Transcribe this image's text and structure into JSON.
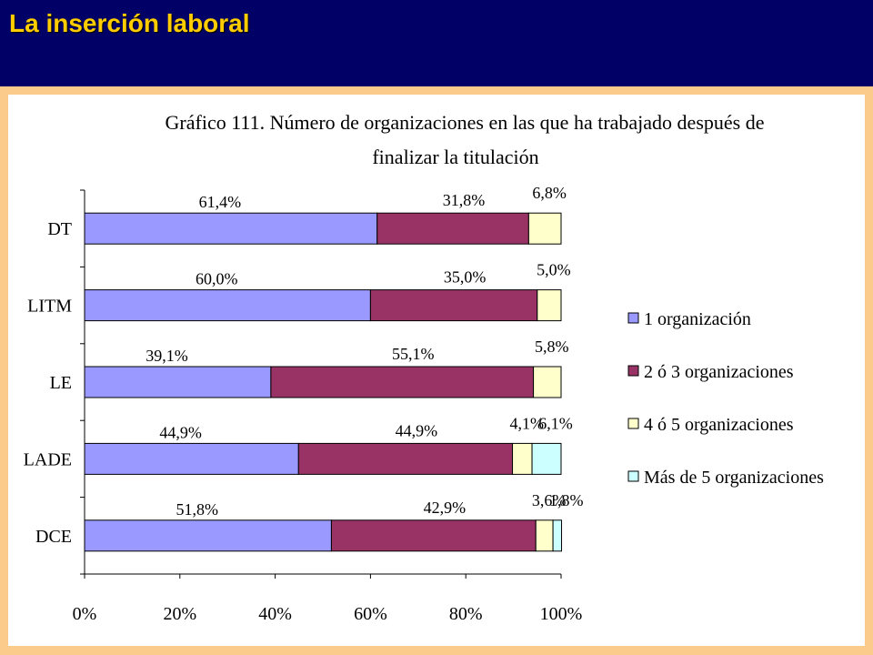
{
  "header": {
    "title": "La inserción laboral"
  },
  "chart_data": {
    "type": "bar",
    "orientation": "horizontal",
    "stacked": true,
    "title_lines": [
      "Gráfico 111.  Número de organizaciones en las que ha trabajado  después de",
      "finalizar la titulación"
    ],
    "categories": [
      "DT",
      "LITM",
      "LE",
      "LADE",
      "DCE"
    ],
    "x_ticks": [
      "0%",
      "20%",
      "40%",
      "60%",
      "80%",
      "100%"
    ],
    "xlim": [
      0,
      100
    ],
    "grid": false,
    "legend_position": "right",
    "series": [
      {
        "name": "1 organización",
        "color": "#9999ff",
        "values": [
          61.4,
          60.0,
          39.1,
          44.9,
          51.8
        ],
        "labels": [
          "61,4%",
          "60,0%",
          "39,1%",
          "44,9%",
          "51,8%"
        ]
      },
      {
        "name": "2 ó 3 organizaciones",
        "color": "#993366",
        "values": [
          31.8,
          35.0,
          55.1,
          44.9,
          42.9
        ],
        "labels": [
          "31,8%",
          "35,0%",
          "55,1%",
          "44,9%",
          "42,9%"
        ]
      },
      {
        "name": "4 ó 5 organizaciones",
        "color": "#ffffcc",
        "values": [
          6.8,
          5.0,
          5.8,
          4.1,
          3.6
        ],
        "labels": [
          "6,8%",
          "5,0%",
          "5,8%",
          "4,1%",
          "3,6%"
        ]
      },
      {
        "name": "Más de 5 organizaciones",
        "color": "#ccffff",
        "values": [
          0,
          0,
          0,
          6.1,
          1.8
        ],
        "labels": [
          "",
          "",
          "",
          "6,1%",
          "1,8%"
        ]
      }
    ]
  }
}
